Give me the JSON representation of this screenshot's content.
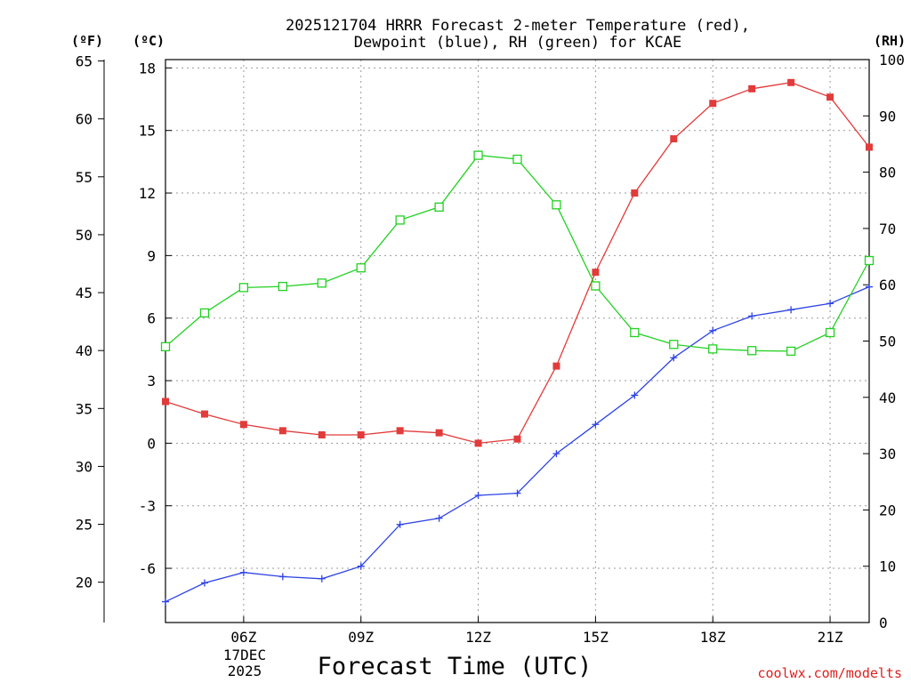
{
  "chart_data": {
    "type": "line",
    "title_line1": "2025121704 HRRR Forecast 2-meter Temperature (red),",
    "title_line2": "Dewpoint (blue), RH (green) for KCAE",
    "xlabel": "Forecast Time (UTC)",
    "credit": "coolwx.com/modelts",
    "unit_left_f": "(ºF)",
    "unit_left_c": "(ºC)",
    "unit_right_rh": "(RH)",
    "date_label": [
      "17DEC",
      "2025"
    ],
    "x_hours": [
      4,
      5,
      6,
      7,
      8,
      9,
      10,
      11,
      12,
      13,
      14,
      15,
      16,
      17,
      18,
      19,
      20,
      21,
      22
    ],
    "x_range": [
      4,
      22
    ],
    "x_ticks": [
      {
        "hour": 6,
        "label": "06Z"
      },
      {
        "hour": 9,
        "label": "09Z"
      },
      {
        "hour": 12,
        "label": "12Z"
      },
      {
        "hour": 15,
        "label": "15Z"
      },
      {
        "hour": 18,
        "label": "18Z"
      },
      {
        "hour": 21,
        "label": "21Z"
      }
    ],
    "celsius_axis": {
      "range": [
        -8.6,
        18.4
      ],
      "ticks": [
        "-6",
        "-3",
        "0",
        "3",
        "6",
        "9",
        "12",
        "15",
        "18"
      ],
      "tick_values": [
        -6,
        -3,
        0,
        3,
        6,
        9,
        12,
        15,
        18
      ]
    },
    "fahrenheit_axis": {
      "ticks": [
        "20",
        "25",
        "30",
        "35",
        "40",
        "45",
        "50",
        "55",
        "60",
        "65"
      ],
      "tick_values": [
        20,
        25,
        30,
        35,
        40,
        45,
        50,
        55,
        60,
        65
      ]
    },
    "rh_axis": {
      "range": [
        0,
        100
      ],
      "ticks": [
        "0",
        "10",
        "20",
        "30",
        "40",
        "50",
        "60",
        "70",
        "80",
        "90",
        "100"
      ],
      "tick_values": [
        0,
        10,
        20,
        30,
        40,
        50,
        60,
        70,
        80,
        90,
        100
      ]
    },
    "series": [
      {
        "name": "2-meter Temperature",
        "axis": "celsius",
        "color": "#e23b3b",
        "marker": "filled-square",
        "values": [
          2.0,
          1.4,
          0.9,
          0.6,
          0.4,
          0.4,
          0.6,
          0.5,
          0.0,
          0.2,
          3.7,
          8.2,
          12.0,
          14.6,
          16.3,
          17.0,
          17.3,
          16.6,
          14.2
        ]
      },
      {
        "name": "Dewpoint",
        "axis": "celsius",
        "color": "#2e43e6",
        "marker": "plus",
        "values": [
          -7.6,
          -6.7,
          -6.2,
          -6.4,
          -6.5,
          -5.9,
          -3.9,
          -3.6,
          -2.5,
          -2.4,
          -0.5,
          0.9,
          2.3,
          4.1,
          5.4,
          6.1,
          6.4,
          6.7,
          7.5
        ]
      },
      {
        "name": "RH",
        "axis": "rh",
        "color": "#22d122",
        "marker": "open-square",
        "values": [
          49.0,
          55.0,
          59.5,
          59.7,
          60.3,
          63.0,
          71.5,
          73.8,
          83.0,
          82.3,
          74.2,
          59.8,
          51.5,
          49.4,
          48.6,
          48.3,
          48.2,
          51.5,
          64.3
        ]
      }
    ]
  }
}
